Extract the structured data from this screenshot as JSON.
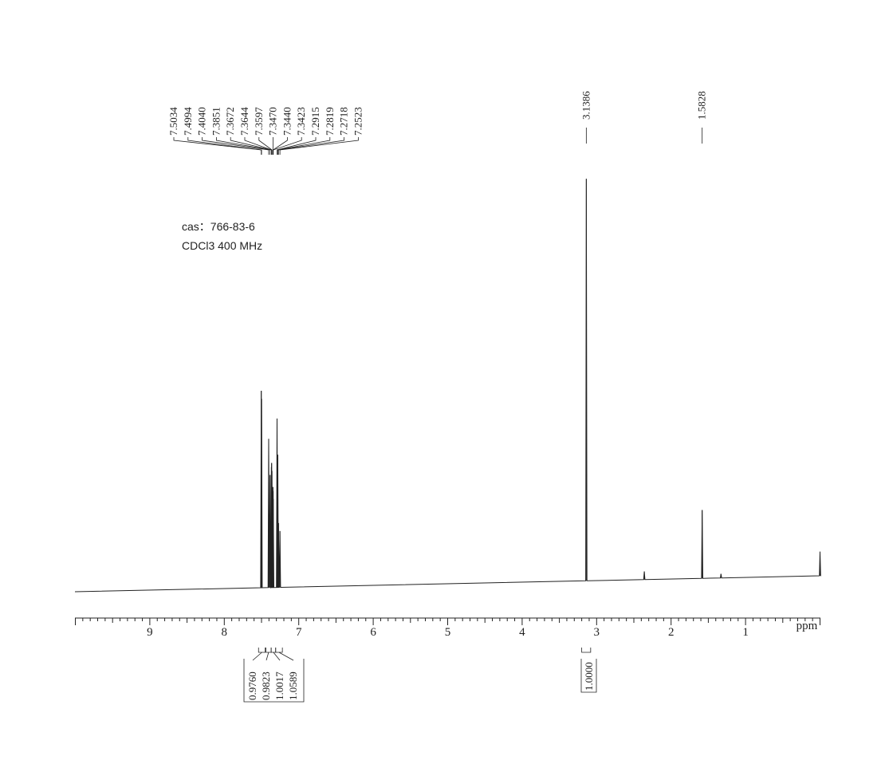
{
  "sample": {
    "cas_line": "cas：766-83-6",
    "solvent_line": "CDCl3  400 MHz"
  },
  "chart_data": {
    "type": "line",
    "title": "",
    "xlabel": "ppm",
    "ylabel": "",
    "xlim": [
      10.0,
      0.0
    ],
    "x_reversed": true,
    "grid": false,
    "x_ticks": [
      9,
      8,
      7,
      6,
      5,
      4,
      3,
      2,
      1
    ],
    "x_tick_labels": [
      "9",
      "8",
      "7",
      "6",
      "5",
      "4",
      "3",
      "2",
      "1"
    ],
    "peak_labels": [
      "7.5034",
      "7.4994",
      "7.4040",
      "7.3851",
      "7.3672",
      "7.3644",
      "7.3597",
      "7.3470",
      "7.3440",
      "7.3423",
      "7.2915",
      "7.2819",
      "7.2718",
      "7.2523",
      "3.1386",
      "1.5828"
    ],
    "peaks": [
      {
        "ppm": 7.5034,
        "height": 0.49
      },
      {
        "ppm": 7.4994,
        "height": 0.47
      },
      {
        "ppm": 7.404,
        "height": 0.37
      },
      {
        "ppm": 7.3851,
        "height": 0.28
      },
      {
        "ppm": 7.3672,
        "height": 0.3
      },
      {
        "ppm": 7.3644,
        "height": 0.31
      },
      {
        "ppm": 7.3597,
        "height": 0.29
      },
      {
        "ppm": 7.347,
        "height": 0.25
      },
      {
        "ppm": 7.344,
        "height": 0.24
      },
      {
        "ppm": 7.3423,
        "height": 0.22
      },
      {
        "ppm": 7.2915,
        "height": 0.42
      },
      {
        "ppm": 7.2819,
        "height": 0.33
      },
      {
        "ppm": 7.2718,
        "height": 0.16
      },
      {
        "ppm": 7.2523,
        "height": 0.14
      },
      {
        "ppm": 3.1386,
        "height": 1.0
      },
      {
        "ppm": 2.36,
        "height": 0.02
      },
      {
        "ppm": 1.5828,
        "height": 0.17
      },
      {
        "ppm": 1.33,
        "height": 0.01
      },
      {
        "ppm": 0.0,
        "height": 0.06
      }
    ],
    "integrals": [
      {
        "label": "0.9760",
        "from": 7.54,
        "to": 7.45
      },
      {
        "label": "0.9823",
        "from": 7.44,
        "to": 7.37
      },
      {
        "label": "1.0017",
        "from": 7.37,
        "to": 7.31
      },
      {
        "label": "1.0589",
        "from": 7.31,
        "to": 7.22
      },
      {
        "label": "1.0000",
        "from": 3.2,
        "to": 3.08
      }
    ]
  }
}
